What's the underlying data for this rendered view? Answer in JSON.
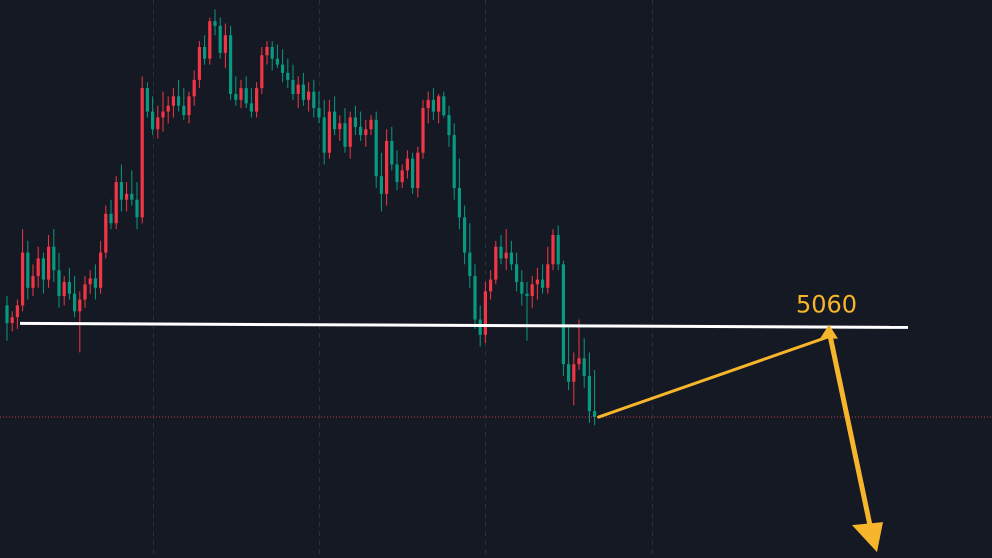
{
  "colors": {
    "background": "#151924",
    "grid": "#2b2f3a",
    "up": "#f23645",
    "down": "#089981",
    "support_line": "#ffffff",
    "annotation": "#f7b52b",
    "price_line": "#c0384a"
  },
  "annotation": {
    "label": "5060"
  },
  "chart_data": {
    "type": "candlestick",
    "title": "",
    "xlabel": "",
    "ylabel": "",
    "ylim": [
      4865,
      5340
    ],
    "grid": {
      "horizontal": false,
      "vertical": true,
      "vertical_at_index": [
        28,
        60,
        92,
        124
      ]
    },
    "support_level": 5063,
    "current_price_line": 4985,
    "candles": [
      [
        5080,
        5088,
        5050,
        5065
      ],
      [
        5065,
        5075,
        5058,
        5070
      ],
      [
        5070,
        5085,
        5060,
        5080
      ],
      [
        5080,
        5145,
        5075,
        5125
      ],
      [
        5125,
        5135,
        5085,
        5095
      ],
      [
        5095,
        5115,
        5088,
        5105
      ],
      [
        5105,
        5130,
        5095,
        5120
      ],
      [
        5120,
        5125,
        5090,
        5102
      ],
      [
        5102,
        5140,
        5095,
        5130
      ],
      [
        5130,
        5145,
        5100,
        5110
      ],
      [
        5110,
        5125,
        5078,
        5088
      ],
      [
        5088,
        5105,
        5080,
        5100
      ],
      [
        5100,
        5112,
        5085,
        5090
      ],
      [
        5090,
        5105,
        5070,
        5075
      ],
      [
        5075,
        5092,
        5040,
        5085
      ],
      [
        5085,
        5105,
        5078,
        5098
      ],
      [
        5098,
        5110,
        5090,
        5103
      ],
      [
        5103,
        5115,
        5085,
        5095
      ],
      [
        5095,
        5135,
        5090,
        5125
      ],
      [
        5125,
        5165,
        5120,
        5158
      ],
      [
        5158,
        5170,
        5145,
        5150
      ],
      [
        5150,
        5190,
        5145,
        5185
      ],
      [
        5185,
        5200,
        5160,
        5170
      ],
      [
        5170,
        5185,
        5160,
        5175
      ],
      [
        5175,
        5195,
        5165,
        5170
      ],
      [
        5170,
        5185,
        5145,
        5155
      ],
      [
        5155,
        5275,
        5150,
        5265
      ],
      [
        5265,
        5270,
        5240,
        5245
      ],
      [
        5245,
        5258,
        5225,
        5230
      ],
      [
        5230,
        5250,
        5222,
        5240
      ],
      [
        5240,
        5262,
        5228,
        5245
      ],
      [
        5245,
        5258,
        5235,
        5250
      ],
      [
        5250,
        5265,
        5240,
        5258
      ],
      [
        5258,
        5272,
        5245,
        5250
      ],
      [
        5250,
        5265,
        5238,
        5242
      ],
      [
        5242,
        5262,
        5235,
        5258
      ],
      [
        5258,
        5280,
        5250,
        5272
      ],
      [
        5272,
        5305,
        5265,
        5300
      ],
      [
        5300,
        5310,
        5285,
        5290
      ],
      [
        5290,
        5325,
        5285,
        5322
      ],
      [
        5322,
        5332,
        5310,
        5318
      ],
      [
        5318,
        5325,
        5290,
        5295
      ],
      [
        5295,
        5320,
        5282,
        5310
      ],
      [
        5310,
        5318,
        5255,
        5260
      ],
      [
        5260,
        5275,
        5250,
        5255
      ],
      [
        5255,
        5272,
        5248,
        5265
      ],
      [
        5265,
        5275,
        5248,
        5252
      ],
      [
        5252,
        5265,
        5240,
        5245
      ],
      [
        5245,
        5270,
        5240,
        5265
      ],
      [
        5265,
        5300,
        5260,
        5293
      ],
      [
        5293,
        5305,
        5285,
        5300
      ],
      [
        5300,
        5305,
        5280,
        5290
      ],
      [
        5290,
        5302,
        5282,
        5285
      ],
      [
        5285,
        5298,
        5270,
        5278
      ],
      [
        5278,
        5290,
        5265,
        5272
      ],
      [
        5272,
        5285,
        5255,
        5260
      ],
      [
        5260,
        5275,
        5248,
        5268
      ],
      [
        5268,
        5278,
        5250,
        5255
      ],
      [
        5255,
        5270,
        5245,
        5262
      ],
      [
        5262,
        5272,
        5240,
        5248
      ],
      [
        5248,
        5262,
        5235,
        5240
      ],
      [
        5240,
        5255,
        5200,
        5210
      ],
      [
        5210,
        5255,
        5205,
        5245
      ],
      [
        5245,
        5258,
        5225,
        5230
      ],
      [
        5230,
        5242,
        5220,
        5235
      ],
      [
        5235,
        5248,
        5210,
        5215
      ],
      [
        5215,
        5245,
        5205,
        5240
      ],
      [
        5240,
        5250,
        5225,
        5232
      ],
      [
        5232,
        5245,
        5220,
        5225
      ],
      [
        5225,
        5238,
        5215,
        5230
      ],
      [
        5230,
        5242,
        5225,
        5238
      ],
      [
        5238,
        5245,
        5180,
        5190
      ],
      [
        5190,
        5210,
        5160,
        5175
      ],
      [
        5175,
        5230,
        5165,
        5220
      ],
      [
        5220,
        5232,
        5195,
        5200
      ],
      [
        5200,
        5212,
        5178,
        5185
      ],
      [
        5185,
        5200,
        5180,
        5195
      ],
      [
        5195,
        5212,
        5188,
        5205
      ],
      [
        5205,
        5210,
        5175,
        5180
      ],
      [
        5180,
        5215,
        5172,
        5210
      ],
      [
        5210,
        5255,
        5205,
        5248
      ],
      [
        5248,
        5262,
        5235,
        5255
      ],
      [
        5255,
        5265,
        5238,
        5245
      ],
      [
        5245,
        5260,
        5235,
        5258
      ],
      [
        5258,
        5262,
        5240,
        5242
      ],
      [
        5242,
        5250,
        5215,
        5225
      ],
      [
        5225,
        5235,
        5170,
        5180
      ],
      [
        5180,
        5205,
        5145,
        5155
      ],
      [
        5155,
        5165,
        5115,
        5125
      ],
      [
        5125,
        5150,
        5095,
        5105
      ],
      [
        5105,
        5115,
        5060,
        5068
      ],
      [
        5068,
        5080,
        5045,
        5055
      ],
      [
        5055,
        5100,
        5048,
        5092
      ],
      [
        5092,
        5110,
        5085,
        5102
      ],
      [
        5102,
        5135,
        5098,
        5130
      ],
      [
        5130,
        5140,
        5115,
        5120
      ],
      [
        5120,
        5145,
        5110,
        5125
      ],
      [
        5125,
        5135,
        5110,
        5115
      ],
      [
        5115,
        5125,
        5092,
        5100
      ],
      [
        5100,
        5110,
        5080,
        5090
      ],
      [
        5090,
        5100,
        5050,
        5088
      ],
      [
        5088,
        5105,
        5078,
        5098
      ],
      [
        5098,
        5112,
        5085,
        5102
      ],
      [
        5102,
        5115,
        5090,
        5095
      ],
      [
        5095,
        5130,
        5090,
        5115
      ],
      [
        5115,
        5145,
        5110,
        5140
      ],
      [
        5140,
        5148,
        5110,
        5115
      ],
      [
        5115,
        5118,
        5020,
        5030
      ],
      [
        5030,
        5062,
        5008,
        5015
      ],
      [
        5015,
        5040,
        4995,
        5030
      ],
      [
        5030,
        5068,
        5025,
        5035
      ],
      [
        5035,
        5052,
        5010,
        5020
      ],
      [
        5020,
        5040,
        4980,
        4990
      ],
      [
        4990,
        5025,
        4978,
        4985
      ]
    ],
    "projection": {
      "from_price": 4985,
      "peak_price": 5062,
      "target_price": 4870,
      "peak_label": "5060"
    }
  }
}
